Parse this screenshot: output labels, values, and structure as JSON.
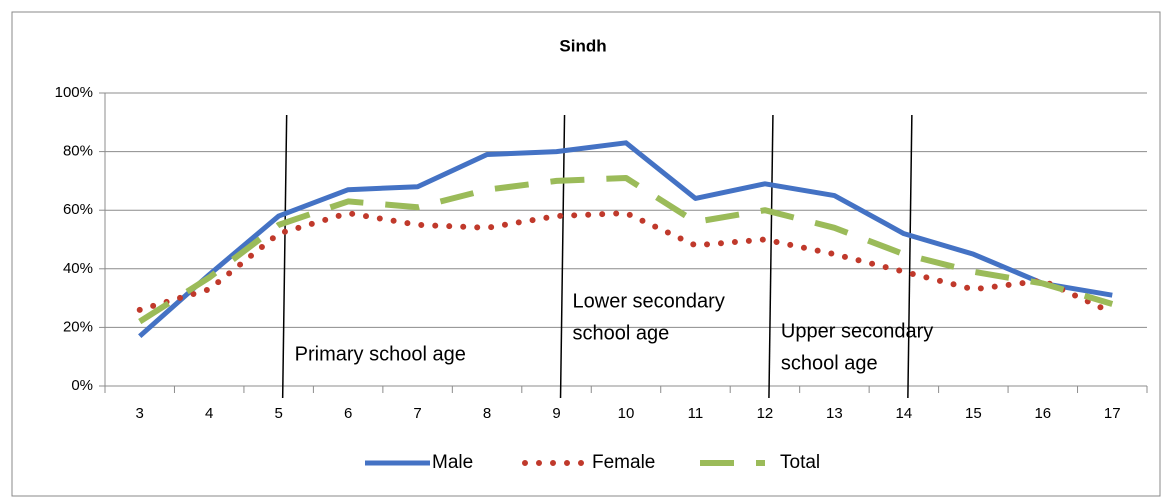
{
  "chart_data": {
    "type": "line",
    "title": "Sindh",
    "categories": [
      "3",
      "4",
      "5",
      "6",
      "7",
      "8",
      "9",
      "10",
      "11",
      "12",
      "13",
      "14",
      "15",
      "16",
      "17"
    ],
    "series": [
      {
        "name": "Male",
        "color": "#4472c4",
        "dash": "solid",
        "values": [
          17,
          38,
          58,
          67,
          68,
          79,
          80,
          83,
          64,
          69,
          65,
          52,
          45,
          35,
          31
        ]
      },
      {
        "name": "Female",
        "color": "#c0392b",
        "dash": "dotted",
        "values": [
          26,
          33,
          52,
          59,
          55,
          54,
          58,
          59,
          48,
          50,
          45,
          39,
          33,
          36,
          25
        ]
      },
      {
        "name": "Total",
        "color": "#9bbb59",
        "dash": "dashed",
        "values": [
          22,
          37,
          55,
          63,
          61,
          67,
          70,
          71,
          56,
          60,
          54,
          45,
          39,
          35,
          28
        ]
      }
    ],
    "ylim": [
      0,
      100
    ],
    "yticks": [
      {
        "value": 0,
        "label": "0%"
      },
      {
        "value": 20,
        "label": "20%"
      },
      {
        "value": 40,
        "label": "40%"
      },
      {
        "value": 60,
        "label": "60%"
      },
      {
        "value": 80,
        "label": "80%"
      },
      {
        "value": 100,
        "label": "100%"
      }
    ],
    "grid": true,
    "legend": "bottom",
    "annotations": [
      {
        "x": "5",
        "text": [
          "Primary school age"
        ]
      },
      {
        "x": "9",
        "text": [
          "Lower secondary",
          "school age"
        ]
      },
      {
        "x": "12",
        "text": [
          "Upper secondary",
          "school age"
        ]
      },
      {
        "x": "14",
        "text": []
      }
    ]
  }
}
